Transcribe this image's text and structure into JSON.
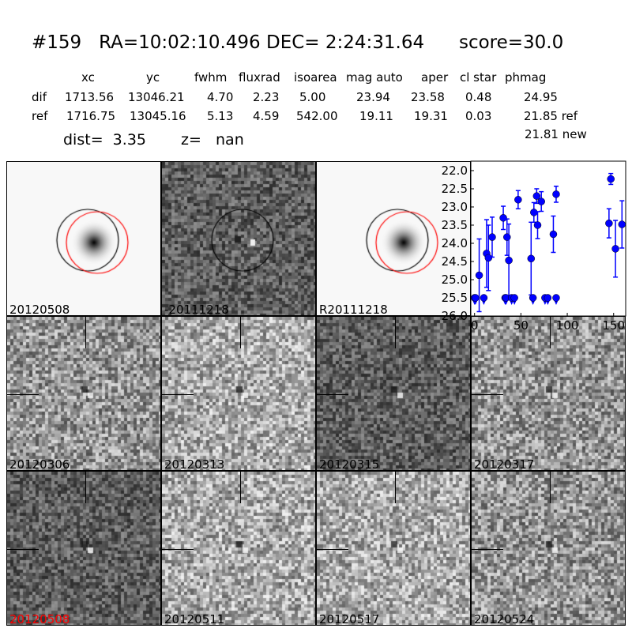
{
  "header": {
    "title": "#159   RA=10:02:10.496 DEC= 2:24:31.64      score=30.0",
    "columns": [
      "xc",
      "yc",
      "fwhm",
      "fluxrad",
      "isoarea",
      "mag auto",
      "aper",
      "cl star",
      "phmag"
    ],
    "rows": [
      {
        "label": "dif",
        "values": [
          "1713.56",
          "13046.21",
          "4.70",
          "2.23",
          "5.00",
          "23.94",
          "23.58",
          "0.48",
          "24.95"
        ]
      },
      {
        "label": "ref",
        "values": [
          "1716.75",
          "13045.16",
          "5.13",
          "4.59",
          "542.00",
          "19.11",
          "19.31",
          "0.03",
          "21.85 ref"
        ]
      }
    ],
    "phmag_new": "21.81 new",
    "dist": "dist=  3.35",
    "z": "z=   nan"
  },
  "panels": [
    {
      "label": "20120508",
      "style": "star",
      "circles": [
        "#000",
        "#f00"
      ]
    },
    {
      "label": "-20111218",
      "style": "diff",
      "circles": [
        "#000"
      ]
    },
    {
      "label": "R20111218",
      "style": "star",
      "circles": [
        "#000",
        "#f00"
      ]
    },
    {
      "label": "20120306",
      "style": "noise"
    },
    {
      "label": "20120313",
      "style": "noise-light"
    },
    {
      "label": "20120315",
      "style": "noise-dark"
    },
    {
      "label": "20120317",
      "style": "noise"
    },
    {
      "label": "20120508",
      "style": "noise-dark",
      "label_color": "#ff0000"
    },
    {
      "label": "20120511",
      "style": "noise-light"
    },
    {
      "label": "20120517",
      "style": "noise-light"
    },
    {
      "label": "20120524",
      "style": "noise"
    }
  ],
  "chart_data": {
    "type": "scatter",
    "title": "",
    "xlabel": "",
    "ylabel": "",
    "xlim": [
      -4,
      163
    ],
    "ylim": [
      26.0,
      21.74
    ],
    "y_inverted": true,
    "xticks": [
      0,
      50,
      100,
      150
    ],
    "yticks": [
      "22.0",
      "22.5",
      "23.0",
      "23.5",
      "24.0",
      "24.5",
      "25.0",
      "25.5",
      "26.0"
    ],
    "color": "#0000ff",
    "points": [
      {
        "x": 5,
        "y": 24.88,
        "err": 1.0
      },
      {
        "x": 13,
        "y": 24.28,
        "err": 0.93
      },
      {
        "x": 15,
        "y": 24.4,
        "err": 0.9
      },
      {
        "x": 19,
        "y": 23.83,
        "err": 0.55
      },
      {
        "x": 31,
        "y": 23.3,
        "err": 0.32
      },
      {
        "x": 35,
        "y": 23.83,
        "err": 0.5
      },
      {
        "x": 37,
        "y": 24.47,
        "err": 1.0
      },
      {
        "x": 47,
        "y": 22.8,
        "err": 0.25
      },
      {
        "x": 61,
        "y": 24.42,
        "err": 1.0
      },
      {
        "x": 64,
        "y": 23.15,
        "err": 0.27
      },
      {
        "x": 67,
        "y": 22.7,
        "err": 0.2
      },
      {
        "x": 68,
        "y": 23.5,
        "err": 0.37
      },
      {
        "x": 72,
        "y": 22.85,
        "err": 0.27
      },
      {
        "x": 85,
        "y": 23.75,
        "err": 0.5
      },
      {
        "x": 88,
        "y": 22.65,
        "err": 0.22
      },
      {
        "x": 145,
        "y": 23.45,
        "err": 0.4
      },
      {
        "x": 147,
        "y": 22.23,
        "err": 0.15
      },
      {
        "x": 152,
        "y": 24.15,
        "err": 0.78
      },
      {
        "x": 159,
        "y": 23.48,
        "err": 0.65
      }
    ],
    "upper_limits": [
      {
        "x": 0,
        "y": 25.5
      },
      {
        "x": 1,
        "y": 25.5
      },
      {
        "x": 10,
        "y": 25.5
      },
      {
        "x": 33,
        "y": 25.5
      },
      {
        "x": 34,
        "y": 25.5
      },
      {
        "x": 40,
        "y": 25.5
      },
      {
        "x": 43,
        "y": 25.5
      },
      {
        "x": 63,
        "y": 25.5
      },
      {
        "x": 76,
        "y": 25.5
      },
      {
        "x": 79,
        "y": 25.5
      },
      {
        "x": 88,
        "y": 25.5
      }
    ]
  }
}
